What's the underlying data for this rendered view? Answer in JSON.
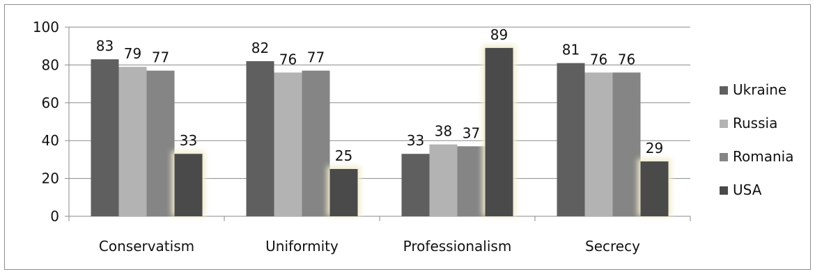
{
  "chart_data": {
    "type": "bar",
    "categories": [
      "Conservatism",
      "Uniformity",
      "Professionalism",
      "Secrecy"
    ],
    "series": [
      {
        "name": "Ukraine",
        "values": [
          83,
          82,
          33,
          81
        ],
        "color": "#5f5f5f"
      },
      {
        "name": "Russia",
        "values": [
          79,
          76,
          38,
          76
        ],
        "color": "#b3b3b3"
      },
      {
        "name": "Romania",
        "values": [
          77,
          77,
          37,
          76
        ],
        "color": "#858585"
      },
      {
        "name": "USA",
        "values": [
          33,
          25,
          89,
          29
        ],
        "color": "#4a4a4a"
      }
    ],
    "data_labels": [
      [
        "83",
        "82",
        "33",
        "81"
      ],
      [
        "79",
        "76",
        "38",
        "76"
      ],
      [
        "77",
        "77",
        "37",
        "76"
      ],
      [
        "33",
        "25",
        "89",
        "29"
      ]
    ],
    "ylim": [
      0,
      100
    ],
    "yticks": [
      0,
      20,
      40,
      60,
      80,
      100
    ],
    "ytick_labels": [
      "0",
      "20",
      "40",
      "60",
      "80",
      "100"
    ],
    "grid": true,
    "legend_position": "right",
    "highlight_glow": "#f0eccd"
  }
}
